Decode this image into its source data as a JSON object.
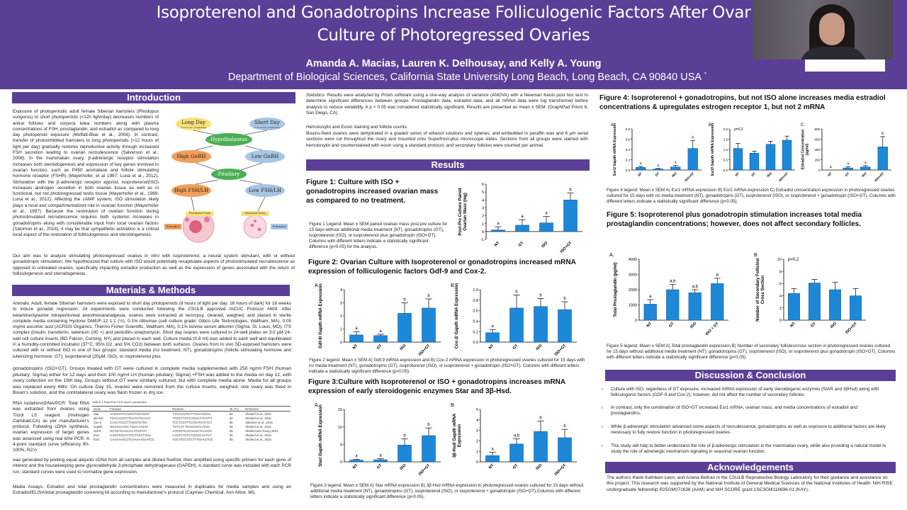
{
  "header": {
    "title_line1": "Isoproterenol and Gonadotropins Increase Folliculogenic Factors After Ovar",
    "title_line2": "Culture of Photoregressed Ovaries",
    "authors": "Amanda A. Macias, Lauren K. Delhousay, and Kelly A. Young",
    "affiliation": "Department of Biological Sciences, California State University Long Beach, Long Beach, CA 90840 USA `"
  },
  "sections": {
    "introduction": "Introduction",
    "methods": "Materials & Methods",
    "results": "Results",
    "discussion": "Discussion & Conclusion",
    "acknowledgements": "Acknowledgements"
  },
  "intro": {
    "p1": "Exposure of photoperiodic adult female Siberian hamsters (Phodopus sungorus) to short photoperiods (<12h light/day) decreases numbers of antral follicles and corpora lutea numbers along with plasma concentrations of FSH, prostaglandin, and estradiol as compared to long day photoperiod exposure (Moffatt-Blue et al., 2006). In contrast, transfer of photoinhibited hamsters to long photoperiods (>12 hours of light per day) gradually restores reproductive activity through increased FSH secretion leading to ovarian recrudescence (Salverson et al., 2008). In the mammalian ovary, β-adrenergic receptor stimulation increases both steroidogenesis and expression of key genes involved in ovarian function, such as P450 aromatase and follicle stimulating hormone receptor (FSHR) (Mayerhofer, et al 1997; Luna et al., 2012). Stimulation with the β-adrenergic receptor agonist, isoproterenol(ISO) increases androgen secretion in both ovarian tissue as well as in functional, but not photoregressed testis tissue (Mayerhofer et al., 1989; Luna et al., 2012). Affecting the cAMP system, ISO stimulation likely plays a local and compartmentalized role in ovarian function (Mayerhofer et al., 1997). Because the restoration of ovarian function during photostimulated recrudescence requires both systemic increases in gonadotropins along with considerable input from local ovarian factors (Salomon et al., 2018), it may be that sympathetic activation is a critical local aspect of the restoration of folliculogenesis and steroidogenesis.",
    "p2": "Our aim was to analyze stimulating photoregressed ovaries in vitro with isoproterenol, a neural system stimulant, with or without gonadotropin stimulation. We hypothesized that culture with ISO would potentially recapitulate aspects of photostimulated recrudescence as opposed to untreated ovaries; specifically impacting estradiol production as well as the expression of genes associated with the return of folliculogenesis and steroidogenesis."
  },
  "diagram": {
    "long_day": "Long Day",
    "long_day_sub": "(>12 hours of light/day)",
    "short_day": "Short Day",
    "short_day_sub": "(<12 hours of light/day)",
    "hypothalamus": "Hypothalamus",
    "high_gnrh": "High GnRH",
    "low_gnrh": "Low GnRH",
    "pituitary": "Pituitary",
    "high_fsh": "High FSH/LH",
    "low_fsh": "Low FSH/LH",
    "functional_ovary": "Functional Ovary",
    "quiescent_ovary": "Quiescent Ovary",
    "estradiol_left": "Estradiol",
    "estradiol_right": "Estradiol"
  },
  "methods": {
    "p1": "Animals: Adult, female Siberian hamsters were exposed to short day photoperiods (8 hours of light per day: 16 hours of dark) for 16 weeks to induce gonadal regression. All experiments were conducted following the CSULB approved IACUC Protocol #409. After ketamine/xylazine intraperitoneal anesthesia/analgesia, ovaries were extracted at necropsy, cleaned, weighed, and placed in sterile complete media containing Hyclone DME/F-12 1:1 (½), 0.1% Albumax (cell culture grade; Gibco Life Technologies, Waltham, MA), 0.05 mg/ml ascorbic acid (ACROS Organics, Thermo Fisher Scientific, Waltham, MA), 0.1% bovine serum albumin (Sigma, St. Louis, MO), ITS complex (insulin, transferrin, selenium 100 ×) and penicillin–streptomycin. Short day ovaries were cultured in 24-well plates on 3.0 µM-24-well cell culture inserts (BD Falcon, Corning, NY) and placed in each well. Culture media (0.8 ml) was added to each well and equilibrated in a humidity-controlled incubator (37°C, 95% O2, and 5% CO2) between both surfaces. Ovaries from In vivo SD-exposed hamsters were cultured with or without ISO in one of four groups: standard media (no treatment, NT), gonadotropins (follicle stimulating hormone and luteinizing hormone, GT); isoproterenol (20µM, ISO); or isoproterenol plus",
    "p2": "gonadotropins (ISO+GT). Groups treated with GT were cultured in complete media supplemented with 250 ng/ml FSH (human pituitary; Sigma) either for 12 days and then 100 ng/ml LH (human pituitary; Sigma) +FSH was added to the media on day 12, with ovary collection on the 15th day. Groups without GT were similarly cultured, but with complete media alone. Media for all groups was replaced every 48hr. On culture Day 15, ovaries were removed from the culture inserts, weighed, one ovary was fixed in Bouin's solution, and the contralateral ovary was flash frozen in dry ice.",
    "p3": "RNA Isolation/cDNA/PCR: Total RNA was extracted from ovaries using Trizol LS reagent (Invitrogen Carlsbad,CA) as per manufacturer's protocol. Following cDNA synthesis, ovarian expression of target genes was assessed using real time PCR. A 4-point standard curve (efficiency 90-100%, R2>)",
    "p4": "was generated by pooling equal aliquots cDNA from all samples and diluted fivefold, then amplified using specific primers for each gene of interest and the housekeeping gene glyceraldehyde 3-phosphate dehydrogenase (GAPDH). A standard curve was included with each PCR run; standard curves were used to normalize gene expression.",
    "p5": "Media Assays: Estradiol and total prostaglandin concentrations were measured in duplicates for media samples and using an Estradiol/ELISA/total prostaglandin screening kit according to manufacturer's protocol (Cayman Chemical, Ann Arbor, MI).",
    "table_title": "TABLE 1   Real-time PCR primer parameters",
    "table_headers": [
      "Gene",
      "Forward",
      "Reverse",
      "Ta (ºC)",
      "Reference"
    ],
    "table_rows": [
      [
        "Star",
        "AAGGTATTCGGGTGGAGGT",
        "TTCCCAATCTTTGCAGGAC",
        "60",
        "Shahed et al., 2013"
      ],
      [
        "3β-Hsd",
        "TGCCAGCCTTCATCTACACC",
        "TGGCTTCTCAGGCATCATTT",
        "60",
        "Shahed et al., 2015"
      ],
      [
        "Cox-2",
        "CAACTCCCTTGGGTGTGA",
        "TCCTCGTTTCTGATCTCTCT",
        "56",
        "Salomon et al., 2018"
      ],
      [
        "Gapdh",
        "GGAGAAAGC TGCCAAGTA",
        "TGTCAT TGAGAGCCATGC",
        "55",
        "Shahed et al., 2013"
      ],
      [
        "Gdf-9",
        "GCGGTCAGCACATGGTAT",
        "AATGGTCACACGCTCAAGG",
        "60",
        "Shahed and Young 2013"
      ],
      [
        "Esr1",
        "CAGGTGCCCTACTACCTGGA",
        "CAGTCTCTCTGGGCACTCT",
        "60",
        "Shahed et al., 2015"
      ],
      [
        "Esr2",
        "CAAGAAACCTCAAAAAGAATCC",
        "AGCATCCCTCTTTGAACTCG",
        "60",
        "Shahed et al., 2015"
      ]
    ]
  },
  "stats": {
    "p1": "Statistics: Results were analyzed by Prism software using a one-way analysis of variance (ANOVA) with a Newman Keuls post hoc test to determine significant differences between groups. Prostaglandin data, estradiol data, and all mRNA data were log transformed before analysis to reduce variability. A p < 0.05 was considered statistically significant. Results are presented as mean ± SEM. (GraphPad Prism 6, San Diego, CA)",
    "p2": "Hemotoxylin and Eosin staining and follicle counts:",
    "p3": "Bouins-fixed ovaries were dehydrated in a graded series of ethanol solutions and xylenes, and embedded in paraffin wax and 6 µm serial sections were cut throughout the ovary and mounted onto Superfrost-plus microscope slides. Sections from all groups were stained with hemotoxylin and counterstained with eosin using a standard protocol, and secondary follicles were counted per animal."
  },
  "figures": {
    "fig1_head": "Figure 1: Culture with ISO + gonadotropins increased ovarian mass as compared to no treatment.",
    "fig1_legend": "Figure 1 Legend: Mean ± SEM paired ovarian mass post-pre culture for 15 days without additional media treatment (NT), gonadotropins (GT), isoproterenol (ISO), or isoproterenol plus gonadotropin (ISO+GT). Columns with different letters indicate a statistically significant difference (p<0.05) for the analysis.",
    "fig2_head": "Figure  2: Ovarian Culture with Isoproterenol or gonadotropins increased mRNA expression of folliculogenic factors Gdf-9 and Cox-2.",
    "fig2_legend": "Figure 2 legend: Mean ± SEM A) Gdf-9 mRNA expression and B) Cox-2 mRNA expression in photoregressed ovaries cultured for 15 days with no media treatment (NT), gonadotropins (GT), isoproterenol (ISO), or isoproterenol + gonadotropin (ISO+GT). Columns with different letters indicate a statistically significant difference (p<0.05).",
    "fig3_head": "Figure 3:Culture with Isoproterenol or ISO + gonadotropins increases  mRNA expression of early steroidogenic enzymes Star and 3β-Hsd.",
    "fig3_legend": "Figure 3 legend: Mean ± SEM A) Star mRNA expression B) 3β-Hsd mRNA expression in photoregressed ovaries cultured for 15 days without additional media treatment (NT), gonadotropins (GT), isoproterenol (ISO), or isoproterenol + gonadotropin (ISO+GT).Columns with different letters indicate a statistically significant difference (p<0.05).",
    "fig4_head": "Figure 4: Isoproterenol + gonadotropins, but not ISO alone increases media estradiol concentrations & upregulates estrogen receptor 1, but not 2 mRNA",
    "fig4_legend": "Figure 4 legend: Mean ± SEM A) Esr1 mRNA expression B) Esr2 mRNA expression C) Estradiol concentration expression in photoregressed ovaries cultured for 15 days with no media treatment (NT), gonadotropins (GT), isoproterenol (ISO), or isoproterenol + gonadotropin (ISO+GT). Columns with different letters indicate a statistically significant difference (p<0.05).",
    "fig5_head": "Figure 5: Isoproterenol plus gonadotropin stimulation increases total media prostaglandin concentrations; however, does not affect secondary follicles.",
    "fig5_legend": "Figure 5 legend: Mean ± SEM A) Total prostaglandin expression B) Number of secondary follicles/cross section in photoregressed ovaries cultured for 15 days without additional media treatment (NT), gonadotropins (GT), isoproterenol (ISO), or isoproterenol plus gonadotropin (ISO+GT). Columns with different letters indicate a statistically significant difference (p<0.05)."
  },
  "discussion": [
    "Culture with ISO, regardless of GT exposure, increased mRNA expression of early steroidogenic enzymes (StAR and 3βHsd) along with folliculogenic factors (GDF-9 and Cox-2); however, did not affect the number of secondary follicles.",
    "In contrast, only the combination of ISO+GT increased Esr1 mRNA, ovarian mass, and media concentrations of estradiol and prostaglandins.",
    " While β-adrenergic stimulation advanced some aspects of recrudescence, gonadotropins as well as exposure to additional factors are likely necessary to fully restore function in photoregressed ovaries.",
    "This study will help to better understand the role of β-adrenergic stimulation in the mammalian ovary, while also providing a natural model to study the role of adrenergic mechanism signaling in seasonal ovarian function."
  ],
  "acknowledgements": "The authors thank Kathleen Leon, and Ariana Beltran in the CSULB Reproductive Biology Laboratory for their guidance and assistance on this project. This research was supported by the National Institute of General Medical Sciences of the National Institutes of Health: NIH RISE undergraduate fellowship R25GM071638 (AAM) and NIH SCORE grant 1SC3GM116696-01 (KAY).",
  "colors": {
    "purple": "#5b3f96",
    "bar_blue": "#1e88d8"
  },
  "chart_data": [
    {
      "id": "fig1",
      "type": "bar",
      "panel": "",
      "ylabel": "Post-Pre Culture Paired Ovarian Mass (mg)",
      "categories": [
        "NT",
        "GT",
        "ISO",
        "ISO+GT"
      ],
      "values": [
        0.2,
        0.8,
        1.1,
        4.0
      ],
      "errors": [
        0.4,
        0.7,
        0.8,
        0.9
      ],
      "letters": [
        "a",
        "a",
        "a",
        "b"
      ],
      "ylim": [
        -1,
        6
      ],
      "yticks": [
        "-1",
        "0",
        "1",
        "2",
        "3",
        "4",
        "5",
        "6"
      ]
    },
    {
      "id": "fig2a",
      "type": "bar",
      "panel": "A.",
      "ylabel": "Gdf-9/ Gapdh mRNA Expression",
      "categories": [
        "NT",
        "GT",
        "ISO",
        "ISO+GT"
      ],
      "values": [
        0.55,
        0.5,
        2.2,
        2.6
      ],
      "errors": [
        0.25,
        0.1,
        0.8,
        0.7
      ],
      "letters": [
        "a",
        "a",
        "b",
        "b"
      ],
      "ylim": [
        0,
        4
      ],
      "yticks": [
        "0",
        "1",
        "2",
        "3",
        "4"
      ]
    },
    {
      "id": "fig2b",
      "type": "bar",
      "panel": "B.",
      "ylabel": "Cox-2/ Gapdh mRNA Expression",
      "categories": [
        "NT",
        "GT",
        "ISO",
        "ISO+GT"
      ],
      "values": [
        0.18,
        0.65,
        0.68,
        0.62
      ],
      "errors": [
        0.06,
        0.25,
        0.15,
        0.15
      ],
      "letters": [
        "a",
        "b",
        "b",
        "b"
      ],
      "ylim": [
        0,
        1.0
      ],
      "yticks": [
        "0.0",
        "0.2",
        "0.4",
        "0.6",
        "0.8",
        "1.0"
      ]
    },
    {
      "id": "fig3a",
      "type": "bar",
      "panel": "A.",
      "ylabel": "Star/ Gapdh mRNA Expression",
      "categories": [
        "NT",
        "GT",
        "ISO",
        "ISO+GT"
      ],
      "values": [
        0.5,
        0.6,
        4.8,
        7.5
      ],
      "errors": [
        0.2,
        0.3,
        1.8,
        2.2
      ],
      "letters": [
        "a",
        "a",
        "b",
        "b"
      ],
      "ylim": [
        0,
        15
      ],
      "yticks": [
        "0",
        "5",
        "10",
        "15"
      ]
    },
    {
      "id": "fig3b",
      "type": "bar",
      "panel": "B.",
      "ylabel": "3β-Hsd/ Gapdh mRNA Expression",
      "categories": [
        "NT",
        "GT",
        "ISO",
        "ISO+GT"
      ],
      "values": [
        0.6,
        1.7,
        2.9,
        2.3
      ],
      "errors": [
        0.3,
        0.5,
        1.0,
        0.8
      ],
      "letters": [
        "a",
        "a,b",
        "b",
        "b"
      ],
      "ylim": [
        0,
        5
      ],
      "yticks": [
        "0",
        "1",
        "2",
        "3",
        "4",
        "5"
      ]
    },
    {
      "id": "fig4a",
      "type": "bar",
      "panel": "A.",
      "ylabel": "Esr1/ Gapdh mRNA Expression",
      "categories": [
        "NT",
        "GT",
        "ISO",
        "ISO+GT"
      ],
      "values": [
        0.05,
        0.02,
        0.06,
        0.42
      ],
      "errors": [
        0.02,
        0.01,
        0.03,
        0.15
      ],
      "letters": [
        "a",
        "a",
        "a",
        "b"
      ],
      "ylim": [
        0,
        0.8
      ],
      "yticks": [
        "0.0",
        "0.2",
        "0.4",
        "0.6",
        "0.8"
      ]
    },
    {
      "id": "fig4b",
      "type": "bar",
      "panel": "B.",
      "ylabel": "Esr2/ Gapdh mRNA Expression",
      "annotation": "p=0.2",
      "categories": [
        "NT",
        "GT",
        "ISO",
        "ISO+GT"
      ],
      "values": [
        1.05,
        0.82,
        1.25,
        1.45
      ],
      "errors": [
        0.25,
        0.1,
        0.15,
        0.2
      ],
      "letters": [
        "",
        "",
        "",
        ""
      ],
      "ylim": [
        0,
        2.0
      ],
      "yticks": [
        "0.0",
        "0.5",
        "1.0",
        "1.5",
        "2.0"
      ]
    },
    {
      "id": "fig4c",
      "type": "bar",
      "panel": "C.",
      "ylabel": "Estradiol Concentration (pg/ml)",
      "categories": [
        "NT",
        "GT",
        "ISO",
        "ISO+GT"
      ],
      "values": [
        0,
        40,
        60,
        450
      ],
      "errors": [
        0,
        20,
        25,
        200
      ],
      "letters": [
        "a",
        "a",
        "a",
        "b"
      ],
      "ylim": [
        0,
        800
      ],
      "yticks": [
        "0",
        "200",
        "400",
        "600",
        "800"
      ]
    },
    {
      "id": "fig5a",
      "type": "bar",
      "panel": "A.",
      "ylabel": "Total Prostaglandin (pg/ml)",
      "categories": [
        "NT",
        "GT",
        "ISO",
        "ISO + GT"
      ],
      "values": [
        1050,
        2000,
        1800,
        2400
      ],
      "errors": [
        300,
        350,
        200,
        350
      ],
      "letters": [
        "a",
        "a,b",
        "a,b",
        "b"
      ],
      "ylim": [
        0,
        4000
      ],
      "yticks": [
        "0",
        "1000",
        "2000",
        "3000",
        "4000"
      ]
    },
    {
      "id": "fig5b",
      "type": "bar",
      "panel": "B.",
      "ylabel": "Number of Secondary Follicles/ Cross Section",
      "annotation": "p=0.2",
      "categories": [
        "NT",
        "GT",
        "ISO",
        "ISO+GT"
      ],
      "values": [
        4.4,
        6.1,
        5.0,
        4.0
      ],
      "errors": [
        0.8,
        0.6,
        1.2,
        1.2
      ],
      "letters": [
        "",
        "",
        "",
        ""
      ],
      "ylim": [
        0,
        10
      ],
      "yticks": [
        "0",
        "2",
        "4",
        "6",
        "8",
        "10"
      ]
    }
  ]
}
